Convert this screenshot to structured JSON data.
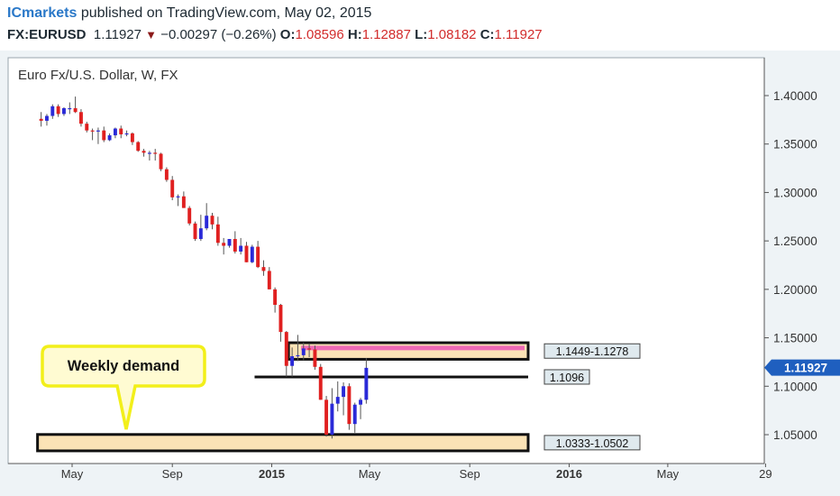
{
  "header": {
    "brand": "ICmarkets",
    "published": "published on TradingView.com, May 02, 2015",
    "symbol": "FX:EURUSD",
    "last": "1.11927",
    "change": "−0.00297 (−0.26%)",
    "open_label": "O:",
    "open": "1.08596",
    "high_label": "H:",
    "high": "1.12887",
    "low_label": "L:",
    "low": "1.08182",
    "close_label": "C:",
    "close": "1.11927"
  },
  "colors": {
    "up": "#2a2ad8",
    "down": "#e02020",
    "zone_fill": "#fbe3b6",
    "zone_border": "#111111",
    "pink_band": "#f06ab5",
    "callout_fill": "#fffbd2",
    "callout_border": "#f2ef1a",
    "price_tag": "#1f5fbf",
    "plot_bg": "#ffffff",
    "frame_bg": "#eef3f6"
  },
  "chart_data": {
    "type": "candlestick",
    "title": "Euro Fx/U.S. Dollar, W, FX",
    "y_range": [
      1.025,
      1.41
    ],
    "y_ticks": [
      "1.40000",
      "1.35000",
      "1.30000",
      "1.25000",
      "1.20000",
      "1.15000",
      "1.10000",
      "1.05000"
    ],
    "y_tick_values": [
      1.4,
      1.35,
      1.3,
      1.25,
      1.2,
      1.15,
      1.1,
      1.05
    ],
    "x_range": [
      "2014-03-24",
      "2016-09-05"
    ],
    "x_ticks": [
      {
        "label": "May",
        "date": "2014-05-01"
      },
      {
        "label": "Sep",
        "date": "2014-09-01"
      },
      {
        "label": "2015",
        "date": "2015-01-01"
      },
      {
        "label": "May",
        "date": "2015-05-01"
      },
      {
        "label": "Sep",
        "date": "2015-09-01"
      },
      {
        "label": "2016",
        "date": "2016-01-01"
      },
      {
        "label": "May",
        "date": "2016-05-01"
      },
      {
        "label": "29",
        "date": "2016-08-29"
      }
    ],
    "candles": [
      {
        "d": "2014-03-24",
        "o": 1.376,
        "h": 1.383,
        "l": 1.368,
        "c": 1.374
      },
      {
        "d": "2014-03-31",
        "o": 1.374,
        "h": 1.381,
        "l": 1.369,
        "c": 1.379
      },
      {
        "d": "2014-04-07",
        "o": 1.379,
        "h": 1.391,
        "l": 1.376,
        "c": 1.389
      },
      {
        "d": "2014-04-14",
        "o": 1.389,
        "h": 1.391,
        "l": 1.378,
        "c": 1.381
      },
      {
        "d": "2014-04-21",
        "o": 1.381,
        "h": 1.388,
        "l": 1.379,
        "c": 1.387
      },
      {
        "d": "2014-04-28",
        "o": 1.387,
        "h": 1.393,
        "l": 1.381,
        "c": 1.387
      },
      {
        "d": "2014-05-05",
        "o": 1.387,
        "h": 1.399,
        "l": 1.382,
        "c": 1.383
      },
      {
        "d": "2014-05-12",
        "o": 1.383,
        "h": 1.386,
        "l": 1.368,
        "c": 1.371
      },
      {
        "d": "2014-05-19",
        "o": 1.371,
        "h": 1.373,
        "l": 1.362,
        "c": 1.364
      },
      {
        "d": "2014-05-26",
        "o": 1.364,
        "h": 1.366,
        "l": 1.354,
        "c": 1.363
      },
      {
        "d": "2014-06-02",
        "o": 1.363,
        "h": 1.367,
        "l": 1.35,
        "c": 1.364
      },
      {
        "d": "2014-06-09",
        "o": 1.364,
        "h": 1.368,
        "l": 1.352,
        "c": 1.354
      },
      {
        "d": "2014-06-16",
        "o": 1.354,
        "h": 1.361,
        "l": 1.353,
        "c": 1.359
      },
      {
        "d": "2014-06-23",
        "o": 1.359,
        "h": 1.367,
        "l": 1.356,
        "c": 1.366
      },
      {
        "d": "2014-06-30",
        "o": 1.366,
        "h": 1.369,
        "l": 1.356,
        "c": 1.36
      },
      {
        "d": "2014-07-07",
        "o": 1.36,
        "h": 1.364,
        "l": 1.358,
        "c": 1.361
      },
      {
        "d": "2014-07-14",
        "o": 1.361,
        "h": 1.362,
        "l": 1.349,
        "c": 1.352
      },
      {
        "d": "2014-07-21",
        "o": 1.352,
        "h": 1.353,
        "l": 1.342,
        "c": 1.343
      },
      {
        "d": "2014-07-28",
        "o": 1.343,
        "h": 1.345,
        "l": 1.337,
        "c": 1.341
      },
      {
        "d": "2014-08-04",
        "o": 1.341,
        "h": 1.343,
        "l": 1.333,
        "c": 1.341
      },
      {
        "d": "2014-08-11",
        "o": 1.341,
        "h": 1.345,
        "l": 1.333,
        "c": 1.34
      },
      {
        "d": "2014-08-18",
        "o": 1.34,
        "h": 1.341,
        "l": 1.322,
        "c": 1.324
      },
      {
        "d": "2014-08-25",
        "o": 1.324,
        "h": 1.326,
        "l": 1.311,
        "c": 1.313
      },
      {
        "d": "2014-09-01",
        "o": 1.313,
        "h": 1.317,
        "l": 1.292,
        "c": 1.295
      },
      {
        "d": "2014-09-08",
        "o": 1.295,
        "h": 1.298,
        "l": 1.286,
        "c": 1.296
      },
      {
        "d": "2014-09-15",
        "o": 1.296,
        "h": 1.301,
        "l": 1.284,
        "c": 1.284
      },
      {
        "d": "2014-09-22",
        "o": 1.284,
        "h": 1.286,
        "l": 1.266,
        "c": 1.268
      },
      {
        "d": "2014-09-29",
        "o": 1.268,
        "h": 1.27,
        "l": 1.25,
        "c": 1.252
      },
      {
        "d": "2014-10-06",
        "o": 1.252,
        "h": 1.277,
        "l": 1.25,
        "c": 1.263
      },
      {
        "d": "2014-10-13",
        "o": 1.263,
        "h": 1.289,
        "l": 1.261,
        "c": 1.276
      },
      {
        "d": "2014-10-20",
        "o": 1.276,
        "h": 1.279,
        "l": 1.262,
        "c": 1.267
      },
      {
        "d": "2014-10-27",
        "o": 1.267,
        "h": 1.275,
        "l": 1.245,
        "c": 1.248
      },
      {
        "d": "2014-11-03",
        "o": 1.248,
        "h": 1.253,
        "l": 1.236,
        "c": 1.245
      },
      {
        "d": "2014-11-10",
        "o": 1.245,
        "h": 1.251,
        "l": 1.243,
        "c": 1.252
      },
      {
        "d": "2014-11-17",
        "o": 1.252,
        "h": 1.26,
        "l": 1.237,
        "c": 1.239
      },
      {
        "d": "2014-11-24",
        "o": 1.239,
        "h": 1.253,
        "l": 1.236,
        "c": 1.245
      },
      {
        "d": "2014-12-01",
        "o": 1.245,
        "h": 1.249,
        "l": 1.228,
        "c": 1.228
      },
      {
        "d": "2014-12-08",
        "o": 1.228,
        "h": 1.246,
        "l": 1.227,
        "c": 1.244
      },
      {
        "d": "2014-12-15",
        "o": 1.244,
        "h": 1.25,
        "l": 1.222,
        "c": 1.223
      },
      {
        "d": "2014-12-22",
        "o": 1.223,
        "h": 1.23,
        "l": 1.214,
        "c": 1.219
      },
      {
        "d": "2014-12-29",
        "o": 1.219,
        "h": 1.223,
        "l": 1.2,
        "c": 1.2
      },
      {
        "d": "2015-01-05",
        "o": 1.2,
        "h": 1.202,
        "l": 1.176,
        "c": 1.184
      },
      {
        "d": "2015-01-12",
        "o": 1.184,
        "h": 1.185,
        "l": 1.146,
        "c": 1.156
      },
      {
        "d": "2015-01-19",
        "o": 1.156,
        "h": 1.157,
        "l": 1.11,
        "c": 1.121
      },
      {
        "d": "2015-01-26",
        "o": 1.121,
        "h": 1.14,
        "l": 1.11,
        "c": 1.131
      },
      {
        "d": "2015-02-02",
        "o": 1.131,
        "h": 1.153,
        "l": 1.126,
        "c": 1.132
      },
      {
        "d": "2015-02-09",
        "o": 1.132,
        "h": 1.145,
        "l": 1.127,
        "c": 1.139
      },
      {
        "d": "2015-02-16",
        "o": 1.139,
        "h": 1.144,
        "l": 1.13,
        "c": 1.138
      },
      {
        "d": "2015-02-23",
        "o": 1.138,
        "h": 1.142,
        "l": 1.117,
        "c": 1.12
      },
      {
        "d": "2015-03-02",
        "o": 1.12,
        "h": 1.123,
        "l": 1.086,
        "c": 1.086
      },
      {
        "d": "2015-03-09",
        "o": 1.086,
        "h": 1.09,
        "l": 1.048,
        "c": 1.05
      },
      {
        "d": "2015-03-16",
        "o": 1.05,
        "h": 1.098,
        "l": 1.046,
        "c": 1.082
      },
      {
        "d": "2015-03-23",
        "o": 1.082,
        "h": 1.105,
        "l": 1.074,
        "c": 1.089
      },
      {
        "d": "2015-03-30",
        "o": 1.089,
        "h": 1.104,
        "l": 1.07,
        "c": 1.1
      },
      {
        "d": "2015-04-06",
        "o": 1.1,
        "h": 1.103,
        "l": 1.055,
        "c": 1.061
      },
      {
        "d": "2015-04-13",
        "o": 1.061,
        "h": 1.083,
        "l": 1.052,
        "c": 1.081
      },
      {
        "d": "2015-04-20",
        "o": 1.081,
        "h": 1.088,
        "l": 1.066,
        "c": 1.086
      },
      {
        "d": "2015-04-27",
        "o": 1.086,
        "h": 1.129,
        "l": 1.082,
        "c": 1.119
      }
    ],
    "zones": [
      {
        "label": "1.1449-1.1278",
        "low": 1.1278,
        "high": 1.1449,
        "from": "2015-01-26"
      },
      {
        "label": "1.0333-1.0502",
        "low": 1.0333,
        "high": 1.0502,
        "from": "2014-03-24"
      }
    ],
    "levels": [
      {
        "label": "1.1096",
        "value": 1.1096,
        "from": "2014-12-22"
      }
    ],
    "pink_band": {
      "value": 1.1395,
      "from": "2015-01-26"
    },
    "last_price_tag": "1.11927",
    "last_price": 1.11927,
    "callout": "Weekly demand"
  }
}
